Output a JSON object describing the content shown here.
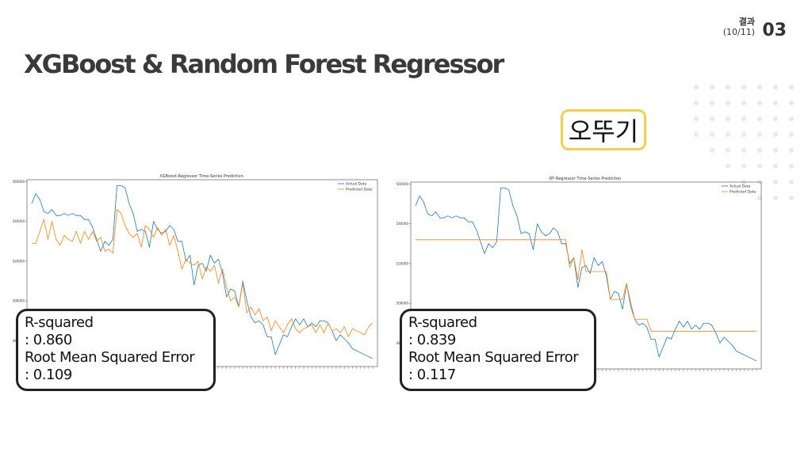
{
  "header": {
    "section_label": "결과",
    "page_progress": "(10/11)",
    "page_number": "03",
    "title": "XGBoost & Random Forest Regressor"
  },
  "company": {
    "name": "오뚜기",
    "accent_color": "#f4cf4a"
  },
  "chart_data": [
    {
      "type": "line",
      "title": "XGBoost-Regressor Time-Series Prediction",
      "x": [
        1,
        2,
        3,
        4,
        5,
        6,
        7,
        8,
        9,
        10,
        11,
        12,
        13,
        14,
        15,
        16,
        17,
        18,
        19,
        20,
        21,
        22,
        23,
        24,
        25,
        26,
        27,
        28,
        29,
        30,
        31,
        32,
        33,
        34,
        35,
        36,
        37,
        38,
        39,
        40,
        41,
        42,
        43,
        44,
        45,
        46,
        47,
        48,
        49,
        50,
        51,
        52,
        53,
        54,
        55,
        56,
        57,
        58,
        59,
        60,
        61,
        62,
        63,
        64,
        65,
        66,
        67,
        68,
        69,
        70,
        71,
        72,
        73,
        74,
        75,
        76,
        77,
        78,
        79,
        80,
        81,
        82,
        83,
        84,
        85
      ],
      "ylim": [
        467000,
        561000
      ],
      "yticks": [
        480000,
        500000,
        520000,
        540000,
        560000
      ],
      "ytick_labels": [
        "480000",
        "500000",
        "520000",
        "540000",
        "560000"
      ],
      "legend": {
        "position": "top-right",
        "entries": [
          "Actual Data",
          "Predicted Data"
        ]
      },
      "series": [
        {
          "name": "Actual Data",
          "color": "#1f77b4",
          "values": [
            549000,
            554000,
            551000,
            545000,
            544000,
            546000,
            543000,
            543000,
            544000,
            543000,
            544000,
            543000,
            543000,
            541000,
            541000,
            537000,
            531000,
            525000,
            530000,
            528000,
            531000,
            558000,
            558000,
            557000,
            549000,
            544000,
            535000,
            536000,
            535000,
            527000,
            540000,
            536000,
            534000,
            535000,
            538000,
            536000,
            530000,
            530000,
            520000,
            523000,
            508000,
            518000,
            519000,
            515000,
            523000,
            519000,
            521000,
            514000,
            502000,
            506000,
            505000,
            497000,
            510000,
            500000,
            492000,
            489000,
            490000,
            488000,
            482000,
            482000,
            473000,
            478000,
            483000,
            482000,
            487000,
            491000,
            488000,
            491000,
            487000,
            489000,
            487000,
            490000,
            490000,
            489000,
            485000,
            480000,
            483000,
            481000,
            479000,
            476000,
            475000,
            474000,
            473000,
            472000,
            471000
          ]
        },
        {
          "name": "Predicted Data",
          "color": "#ff7f0e",
          "values": [
            529000,
            529000,
            535000,
            541000,
            531000,
            540000,
            531000,
            528000,
            533000,
            531000,
            530000,
            535000,
            529000,
            535000,
            531000,
            535000,
            530000,
            532000,
            525000,
            526000,
            524000,
            546000,
            544000,
            538000,
            534000,
            532000,
            534000,
            527000,
            538000,
            536000,
            532000,
            537000,
            533000,
            536000,
            528000,
            533000,
            525000,
            516000,
            521000,
            519000,
            518000,
            520000,
            511000,
            517000,
            515000,
            518000,
            509000,
            516000,
            507000,
            500000,
            502000,
            497000,
            509000,
            494000,
            497000,
            493000,
            496000,
            490000,
            492000,
            485000,
            490000,
            487000,
            484000,
            488000,
            491000,
            486000,
            484000,
            486000,
            487000,
            488000,
            484000,
            488000,
            484000,
            489000,
            485000,
            486000,
            484000,
            487000,
            482000,
            486000,
            485000,
            484000,
            483000,
            487000,
            489000
          ]
        }
      ]
    },
    {
      "type": "line",
      "title": "RF-Regressor Time-Series Prediction",
      "x": [
        1,
        2,
        3,
        4,
        5,
        6,
        7,
        8,
        9,
        10,
        11,
        12,
        13,
        14,
        15,
        16,
        17,
        18,
        19,
        20,
        21,
        22,
        23,
        24,
        25,
        26,
        27,
        28,
        29,
        30,
        31,
        32,
        33,
        34,
        35,
        36,
        37,
        38,
        39,
        40,
        41,
        42,
        43,
        44,
        45,
        46,
        47,
        48,
        49,
        50,
        51,
        52,
        53,
        54,
        55,
        56,
        57,
        58,
        59,
        60,
        61,
        62,
        63,
        64,
        65,
        66,
        67,
        68,
        69,
        70,
        71,
        72,
        73,
        74,
        75,
        76,
        77,
        78,
        79,
        80,
        81,
        82,
        83,
        84,
        85
      ],
      "ylim": [
        467000,
        561000
      ],
      "yticks": [
        480000,
        500000,
        520000,
        540000,
        560000
      ],
      "ytick_labels": [
        "480000",
        "500000",
        "520000",
        "540000",
        "560000"
      ],
      "legend": {
        "position": "top-right",
        "entries": [
          "Actual Data",
          "Predicted Data"
        ]
      },
      "series": [
        {
          "name": "Actual Data",
          "color": "#1f77b4",
          "values": [
            549000,
            554000,
            551000,
            545000,
            544000,
            546000,
            543000,
            543000,
            544000,
            543000,
            544000,
            543000,
            543000,
            541000,
            541000,
            537000,
            531000,
            525000,
            530000,
            528000,
            531000,
            558000,
            558000,
            557000,
            549000,
            544000,
            535000,
            536000,
            535000,
            527000,
            540000,
            536000,
            534000,
            535000,
            538000,
            536000,
            530000,
            530000,
            520000,
            523000,
            508000,
            518000,
            519000,
            515000,
            523000,
            519000,
            521000,
            514000,
            502000,
            506000,
            505000,
            497000,
            510000,
            500000,
            492000,
            489000,
            490000,
            488000,
            482000,
            482000,
            473000,
            478000,
            483000,
            482000,
            487000,
            491000,
            488000,
            491000,
            487000,
            489000,
            487000,
            490000,
            490000,
            489000,
            485000,
            480000,
            483000,
            481000,
            479000,
            476000,
            475000,
            474000,
            473000,
            472000,
            471000
          ]
        },
        {
          "name": "Predicted Data",
          "color": "#ff7f0e",
          "values": [
            532000,
            532000,
            532000,
            532000,
            532000,
            532000,
            532000,
            532000,
            532000,
            532000,
            532000,
            532000,
            532000,
            532000,
            532000,
            532000,
            532000,
            532000,
            532000,
            532000,
            532000,
            532000,
            532000,
            532000,
            532000,
            532000,
            532000,
            532000,
            532000,
            532000,
            532000,
            532000,
            532000,
            532000,
            532000,
            532000,
            532000,
            532000,
            518000,
            523000,
            512000,
            527000,
            516000,
            516000,
            516000,
            516000,
            516000,
            516000,
            502000,
            502000,
            502000,
            502000,
            510000,
            498000,
            492000,
            492000,
            492000,
            492000,
            486000,
            486000,
            486000,
            486000,
            486000,
            486000,
            486000,
            486000,
            486000,
            486000,
            486000,
            486000,
            486000,
            486000,
            486000,
            486000,
            486000,
            486000,
            486000,
            486000,
            486000,
            486000,
            486000,
            486000,
            486000,
            486000,
            486000
          ]
        }
      ]
    }
  ],
  "metrics": [
    {
      "r2_label": "R-squared",
      "r2_value": ": 0.860",
      "rmse_label": "Root Mean Squared Error",
      "rmse_value": ": 0.109"
    },
    {
      "r2_label": "R-squared",
      "r2_value": ": 0.839",
      "rmse_label": "Root Mean Squared Error",
      "rmse_value": ": 0.117"
    }
  ]
}
